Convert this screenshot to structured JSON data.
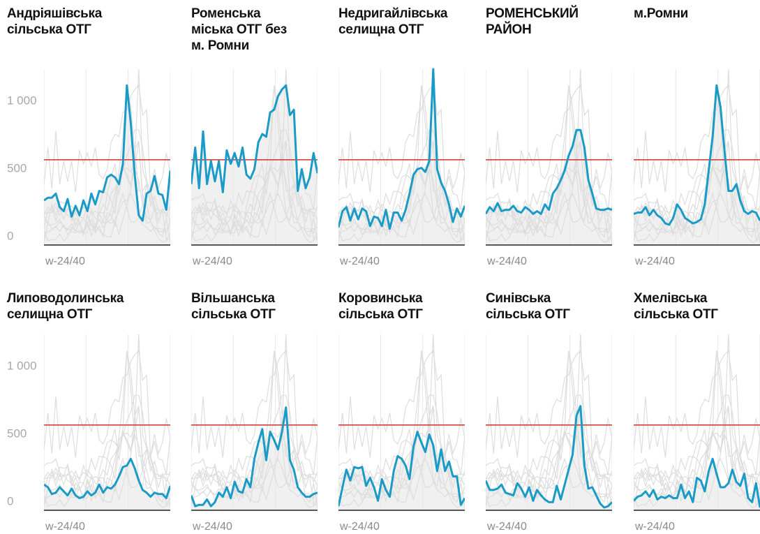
{
  "chart_data": {
    "type": "line",
    "color": "#1a9bc7",
    "context_color": "#dddddd",
    "area_color": "#f0f0f0",
    "threshold": 630,
    "threshold_color": "#d0302a",
    "ylim": [
      0,
      1300
    ],
    "yticks": [
      0,
      500,
      {
        "value": 1000,
        "label": "1 000"
      }
    ],
    "x_label": "w-24/40",
    "panels": [
      {
        "title": "Андріяшівська\nсільська ОТГ",
        "values": [
          330,
          350,
          350,
          380,
          280,
          250,
          340,
          210,
          290,
          220,
          330,
          250,
          380,
          300,
          400,
          390,
          500,
          520,
          500,
          450,
          600,
          1180,
          900,
          520,
          220,
          180,
          380,
          400,
          510,
          380,
          370,
          260,
          550
        ]
      },
      {
        "title": "Роменська\nміська ОТГ без\nм. Ромни",
        "values": [
          450,
          720,
          420,
          840,
          450,
          620,
          470,
          620,
          390,
          700,
          600,
          680,
          580,
          720,
          520,
          490,
          560,
          760,
          820,
          800,
          980,
          1000,
          1100,
          1150,
          1180,
          960,
          1000,
          400,
          560,
          420,
          500,
          680,
          530
        ]
      },
      {
        "title": "Недригайлівська\nселищна ОТГ",
        "values": [
          130,
          250,
          280,
          180,
          270,
          190,
          270,
          250,
          140,
          210,
          200,
          140,
          260,
          120,
          240,
          240,
          180,
          260,
          380,
          520,
          560,
          570,
          540,
          620,
          1300,
          560,
          460,
          400,
          300,
          170,
          270,
          210,
          290
        ]
      },
      {
        "title": "РОМЕНСЬКИЙ\nРАЙОН",
        "values": [
          230,
          280,
          250,
          310,
          250,
          260,
          260,
          290,
          250,
          240,
          280,
          260,
          230,
          250,
          230,
          300,
          260,
          380,
          420,
          480,
          550,
          660,
          730,
          850,
          850,
          720,
          480,
          380,
          270,
          260,
          260,
          270,
          260
        ]
      },
      {
        "title": "м.Ромни",
        "values": [
          230,
          240,
          240,
          280,
          220,
          260,
          220,
          200,
          160,
          150,
          200,
          300,
          260,
          200,
          180,
          160,
          170,
          190,
          300,
          550,
          800,
          1180,
          1020,
          700,
          400,
          400,
          450,
          330,
          250,
          230,
          250,
          240,
          180
        ]
      },
      {
        "title": "Липоводолинська\nселищна ОТГ",
        "values": [
          190,
          170,
          120,
          130,
          170,
          140,
          110,
          160,
          110,
          90,
          100,
          140,
          110,
          130,
          190,
          130,
          170,
          160,
          190,
          250,
          320,
          330,
          380,
          310,
          220,
          150,
          130,
          100,
          130,
          120,
          120,
          90,
          180
        ]
      },
      {
        "title": "Вільшанська\nсільська ОТГ",
        "values": [
          110,
          30,
          40,
          40,
          80,
          30,
          60,
          130,
          100,
          170,
          90,
          210,
          140,
          130,
          230,
          170,
          380,
          500,
          600,
          370,
          580,
          520,
          450,
          580,
          760,
          370,
          300,
          170,
          130,
          100,
          100,
          120,
          130
        ]
      },
      {
        "title": "Коровинська\nсільська ОТГ",
        "values": [
          30,
          170,
          300,
          220,
          320,
          310,
          320,
          180,
          240,
          170,
          70,
          230,
          150,
          100,
          290,
          400,
          380,
          330,
          230,
          470,
          580,
          500,
          430,
          560,
          480,
          290,
          450,
          290,
          360,
          250,
          250,
          40,
          90
        ]
      },
      {
        "title": "Синівська\nсільська ОТГ",
        "values": [
          220,
          150,
          150,
          160,
          190,
          130,
          120,
          110,
          200,
          160,
          100,
          170,
          70,
          150,
          110,
          80,
          60,
          60,
          180,
          80,
          190,
          300,
          410,
          700,
          770,
          330,
          160,
          170,
          110,
          50,
          20,
          30,
          60
        ]
      },
      {
        "title": "Хмелівська\nсільська ОТГ",
        "values": [
          70,
          100,
          110,
          140,
          100,
          150,
          80,
          100,
          90,
          110,
          90,
          90,
          190,
          90,
          140,
          60,
          240,
          220,
          140,
          290,
          380,
          270,
          170,
          170,
          200,
          300,
          210,
          180,
          270,
          90,
          60,
          200,
          20
        ]
      }
    ]
  }
}
